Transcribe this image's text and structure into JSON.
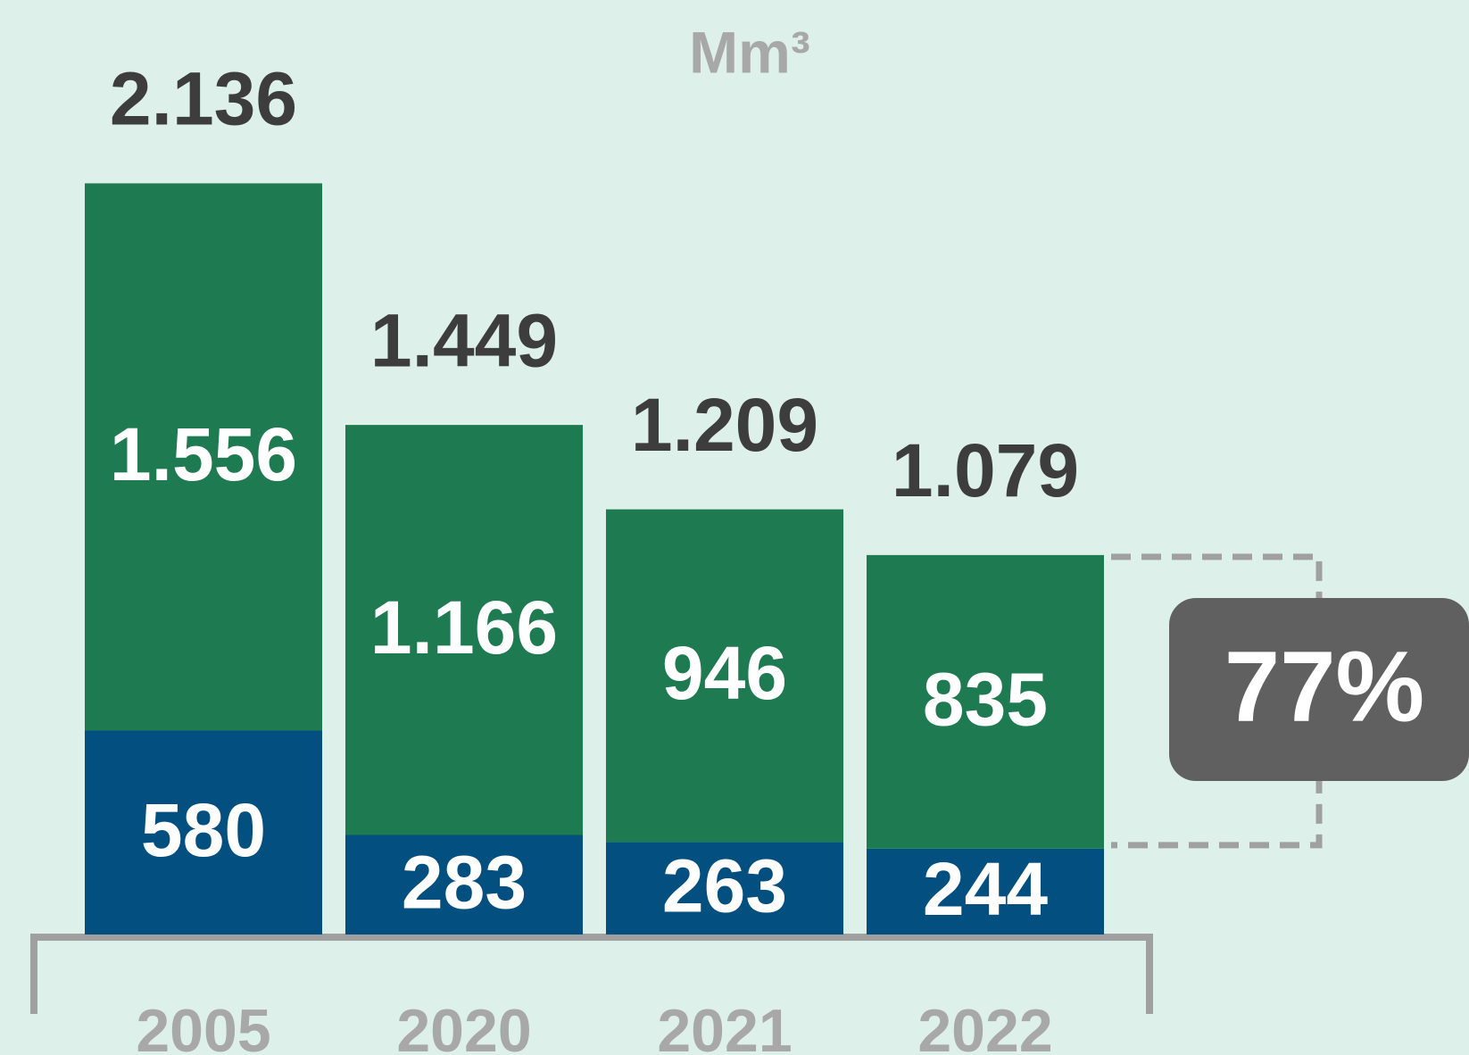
{
  "chart_data": {
    "type": "stacked_bar",
    "title": "Mm³",
    "categories": [
      "2005",
      "2020",
      "2021",
      "2022"
    ],
    "series": [
      {
        "color": "#024f80",
        "values": [
          580,
          283,
          263,
          244
        ],
        "value_labels": [
          "580",
          "283",
          "263",
          "244"
        ]
      },
      {
        "color": "#1e7a50",
        "values": [
          1556,
          1166,
          946,
          835
        ],
        "value_labels": [
          "1.556",
          "1.166",
          "946",
          "835"
        ]
      }
    ],
    "totals": {
      "values": [
        2136,
        1449,
        1209,
        1079
      ],
      "value_labels": [
        "2.136",
        "1.449",
        "1.209",
        "1.079"
      ]
    },
    "annotation": "77%"
  }
}
